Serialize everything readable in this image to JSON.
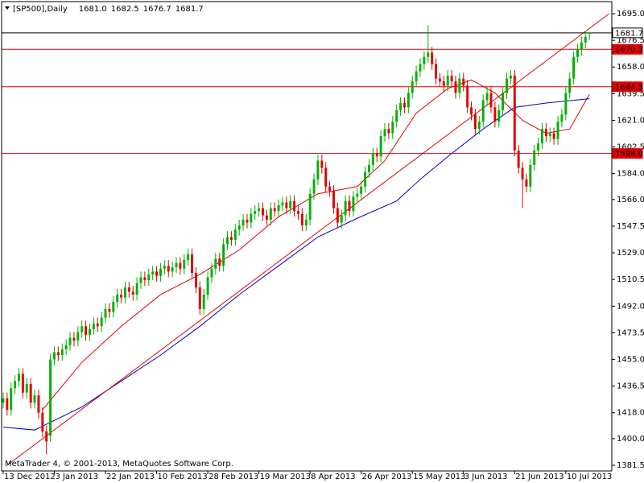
{
  "chart_data": {
    "type": "candlestick",
    "title": "[SP500],Daily",
    "title_values": [
      {
        "value": 1681,
        "label": "1681.0"
      },
      1682.5,
      1676.7,
      1681.7
    ],
    "footer": "MetaTrader 4, © 2001-2013, MetaQuotes Software Corp.",
    "categories": [
      "13 Dec 2012",
      null,
      null,
      null,
      null,
      null,
      null,
      null,
      null,
      null,
      null,
      null,
      null,
      "3 Jan 2013",
      null,
      null,
      null,
      null,
      null,
      null,
      null,
      null,
      null,
      null,
      null,
      null,
      "22 Jan 2013",
      null,
      null,
      null,
      null,
      null,
      null,
      null,
      null,
      null,
      null,
      null,
      null,
      "10 Feb 2013",
      null,
      null,
      null,
      null,
      null,
      null,
      null,
      null,
      null,
      null,
      null,
      null,
      "28 Feb 2013",
      null,
      null,
      null,
      null,
      null,
      null,
      null,
      null,
      null,
      null,
      null,
      null,
      "19 Mar 2013",
      null,
      null,
      null,
      null,
      null,
      null,
      null,
      null,
      null,
      null,
      null,
      null,
      "8 Apr 2013",
      null,
      null,
      null,
      null,
      null,
      null,
      null,
      null,
      null,
      null,
      null,
      null,
      "26 Apr 2013",
      null,
      null,
      null,
      null,
      null,
      null,
      null,
      null,
      null,
      null,
      null,
      null,
      "15 May 2013",
      null,
      null,
      null,
      null,
      null,
      null,
      null,
      null,
      null,
      null,
      null,
      null,
      "3 Jun 2013",
      null,
      null,
      null,
      null,
      null,
      null,
      null,
      null,
      null,
      null,
      null,
      null,
      "21 Jun 2013",
      null,
      null,
      null,
      null,
      null,
      null,
      null,
      null,
      null,
      null,
      null,
      null,
      "10 Jul 2013",
      null,
      null,
      null,
      null,
      null,
      null
    ],
    "open": [
      1425,
      1428,
      1420,
      1435,
      1440,
      1445,
      1432,
      1438,
      1425,
      1430,
      1418,
      1405,
      1402,
      1455,
      1460,
      1458,
      1462,
      1465,
      1470,
      1468,
      1474,
      1478,
      1472,
      1476,
      1480,
      1478,
      1484,
      1490,
      1488,
      1495,
      1500,
      1498,
      1505,
      1502,
      1500,
      1508,
      1512,
      1510,
      1514,
      1516,
      1513,
      1518,
      1520,
      1516,
      1519,
      1522,
      1518,
      1524,
      1528,
      1515,
      1505,
      1490,
      1500,
      1512,
      1518,
      1525,
      1520,
      1535,
      1540,
      1538,
      1545,
      1548,
      1552,
      1550,
      1556,
      1558,
      1560,
      1555,
      1552,
      1560,
      1558,
      1562,
      1564,
      1560,
      1565,
      1558,
      1556,
      1548,
      1552,
      1570,
      1580,
      1593,
      1588,
      1575,
      1572,
      1560,
      1550,
      1555,
      1565,
      1558,
      1568,
      1570,
      1575,
      1585,
      1590,
      1598,
      1596,
      1610,
      1615,
      1612,
      1620,
      1628,
      1633,
      1630,
      1640,
      1648,
      1655,
      1660,
      1665,
      1668,
      1660,
      1650,
      1648,
      1645,
      1652,
      1648,
      1640,
      1650,
      1645,
      1630,
      1625,
      1615,
      1620,
      1635,
      1640,
      1630,
      1620,
      1628,
      1640,
      1650,
      1652,
      1600,
      1588,
      1580,
      1575,
      1590,
      1600,
      1605,
      1615,
      1610,
      1612,
      1608,
      1620,
      1625,
      1640,
      1650,
      1665,
      1670,
      1675,
      1681.0
    ],
    "high": [
      1432,
      1432,
      1439,
      1444,
      1449,
      1449,
      1442,
      1442,
      1434,
      1434,
      1422,
      1409,
      1459,
      1464,
      1464,
      1466,
      1469,
      1474,
      1474,
      1478,
      1482,
      1482,
      1480,
      1484,
      1484,
      1488,
      1494,
      1494,
      1499,
      1504,
      1504,
      1509,
      1509,
      1506,
      1512,
      1516,
      1516,
      1518,
      1520,
      1520,
      1522,
      1524,
      1524,
      1523,
      1526,
      1526,
      1528,
      1532,
      1532,
      1519,
      1509,
      1504,
      1516,
      1522,
      1529,
      1529,
      1539,
      1544,
      1544,
      1549,
      1552,
      1556,
      1556,
      1560,
      1562,
      1564,
      1564,
      1559,
      1564,
      1564,
      1566,
      1568,
      1568,
      1569,
      1569,
      1562,
      1560,
      1556,
      1574,
      1584,
      1597,
      1597,
      1592,
      1579,
      1576,
      1564,
      1559,
      1569,
      1569,
      1572,
      1574,
      1579,
      1589,
      1594,
      1602,
      1602,
      1614,
      1619,
      1619,
      1624,
      1632,
      1637,
      1637,
      1644,
      1652,
      1659,
      1664,
      1669,
      1687,
      1672,
      1664,
      1654,
      1652,
      1656,
      1656,
      1652,
      1654,
      1654,
      1649,
      1634,
      1629,
      1624,
      1639,
      1644,
      1644,
      1634,
      1632,
      1644,
      1654,
      1656,
      1656,
      1604,
      1592,
      1584,
      1594,
      1604,
      1609,
      1619,
      1619,
      1616,
      1616,
      1624,
      1629,
      1644,
      1654,
      1669,
      1674,
      1679,
      1683,
      1682.5
    ],
    "low": [
      1421,
      1416,
      1416,
      1431,
      1436,
      1428,
      1428,
      1421,
      1421,
      1414,
      1401,
      1389,
      1398,
      1451,
      1454,
      1454,
      1458,
      1461,
      1464,
      1464,
      1470,
      1468,
      1468,
      1472,
      1474,
      1474,
      1480,
      1484,
      1484,
      1491,
      1494,
      1494,
      1498,
      1496,
      1496,
      1504,
      1506,
      1506,
      1510,
      1509,
      1509,
      1514,
      1512,
      1512,
      1515,
      1514,
      1514,
      1520,
      1511,
      1501,
      1486,
      1486,
      1496,
      1508,
      1514,
      1516,
      1516,
      1531,
      1534,
      1534,
      1541,
      1544,
      1546,
      1546,
      1552,
      1554,
      1551,
      1548,
      1548,
      1554,
      1554,
      1558,
      1556,
      1556,
      1554,
      1552,
      1544,
      1544,
      1548,
      1566,
      1576,
      1584,
      1571,
      1568,
      1556,
      1546,
      1546,
      1551,
      1554,
      1554,
      1564,
      1566,
      1571,
      1581,
      1586,
      1592,
      1592,
      1606,
      1608,
      1608,
      1616,
      1624,
      1626,
      1626,
      1636,
      1644,
      1651,
      1656,
      1661,
      1656,
      1646,
      1644,
      1641,
      1641,
      1644,
      1636,
      1636,
      1641,
      1626,
      1621,
      1611,
      1611,
      1616,
      1631,
      1626,
      1616,
      1616,
      1624,
      1636,
      1646,
      1596,
      1584,
      1560,
      1571,
      1571,
      1586,
      1596,
      1601,
      1606,
      1606,
      1604,
      1604,
      1616,
      1621,
      1636,
      1646,
      1661,
      1666,
      1671,
      1676.7
    ],
    "close": [
      1428,
      1420,
      1435,
      1440,
      1445,
      1432,
      1438,
      1425,
      1430,
      1418,
      1405,
      1398,
      1455,
      1460,
      1458,
      1462,
      1465,
      1470,
      1468,
      1474,
      1478,
      1472,
      1476,
      1480,
      1478,
      1484,
      1490,
      1488,
      1495,
      1500,
      1498,
      1505,
      1502,
      1500,
      1508,
      1512,
      1510,
      1514,
      1516,
      1513,
      1518,
      1520,
      1516,
      1519,
      1522,
      1518,
      1524,
      1528,
      1515,
      1505,
      1490,
      1500,
      1512,
      1518,
      1525,
      1520,
      1535,
      1540,
      1538,
      1545,
      1548,
      1552,
      1550,
      1556,
      1558,
      1560,
      1555,
      1552,
      1560,
      1558,
      1562,
      1564,
      1560,
      1565,
      1558,
      1556,
      1548,
      1552,
      1570,
      1580,
      1593,
      1588,
      1575,
      1572,
      1560,
      1550,
      1555,
      1565,
      1558,
      1568,
      1570,
      1575,
      1585,
      1590,
      1598,
      1596,
      1610,
      1615,
      1612,
      1620,
      1628,
      1633,
      1630,
      1640,
      1648,
      1655,
      1660,
      1665,
      1668,
      1660,
      1650,
      1648,
      1645,
      1652,
      1648,
      1640,
      1650,
      1645,
      1630,
      1625,
      1615,
      1620,
      1635,
      1640,
      1630,
      1620,
      1628,
      1640,
      1650,
      1652,
      1600,
      1588,
      1580,
      1575,
      1590,
      1600,
      1605,
      1615,
      1610,
      1612,
      1608,
      1620,
      1625,
      1640,
      1650,
      1665,
      1670,
      1675,
      1679,
      1681.7
    ],
    "up_color": "#00b000",
    "down_color": "#e00000",
    "lines": [
      {
        "color": "#e00000",
        "x": [
          10,
          20,
          30,
          40,
          50,
          60,
          70,
          80,
          90,
          97,
          105,
          113,
          119,
          125,
          132,
          138,
          144,
          149
        ],
        "values": [
          1420,
          1453,
          1478,
          1500,
          1514,
          1531,
          1554,
          1570,
          1575,
          1593,
          1626,
          1643,
          1649,
          1640,
          1621,
          1612,
          1615,
          1639
        ]
      },
      {
        "color": "#0000c8",
        "x": [
          0,
          8,
          20,
          30,
          40,
          50,
          60,
          70,
          80,
          90,
          100,
          106,
          114,
          122,
          130,
          138,
          149
        ],
        "values": [
          1408,
          1406,
          1422,
          1440,
          1458,
          1478,
          1500,
          1520,
          1540,
          1553,
          1565,
          1580,
          1598,
          1615,
          1630,
          1633,
          1636
        ]
      }
    ],
    "trendline": {
      "color": "#e00000",
      "x": [
        1,
        154
      ],
      "values": [
        1381.5,
        1695
      ]
    },
    "levels": [
      {
        "price": 1681.7,
        "color": "#000000"
      },
      {
        "price": 1670.3,
        "color": "#e00000"
      },
      {
        "price": 1644.3,
        "color": "#e00000"
      },
      {
        "price": {
          "value": 1598,
          "label": "1598.0"
        },
        "color": "#e00000"
      }
    ],
    "xlim": [
      -0.4,
      154.7
    ],
    "ylim": [
      1377.6,
      1703.4
    ],
    "yticks": [
      {
        "value": 1695,
        "label": "1695.0"
      },
      1676.5,
      {
        "value": 1658,
        "label": "1658.0"
      },
      1639.5,
      {
        "value": 1621,
        "label": "1621.0"
      },
      1602.5,
      {
        "value": 1584,
        "label": "1584.0"
      },
      {
        "value": 1566,
        "label": "1566.0"
      },
      1547.5,
      {
        "value": 1529,
        "label": "1529.0"
      },
      1510.5,
      {
        "value": 1492,
        "label": "1492.0"
      },
      1473.5,
      {
        "value": 1455,
        "label": "1455.0"
      },
      1436.5,
      {
        "value": 1418,
        "label": "1418.0"
      },
      {
        "value": 1400,
        "label": "1400.0"
      },
      1381.5
    ]
  }
}
